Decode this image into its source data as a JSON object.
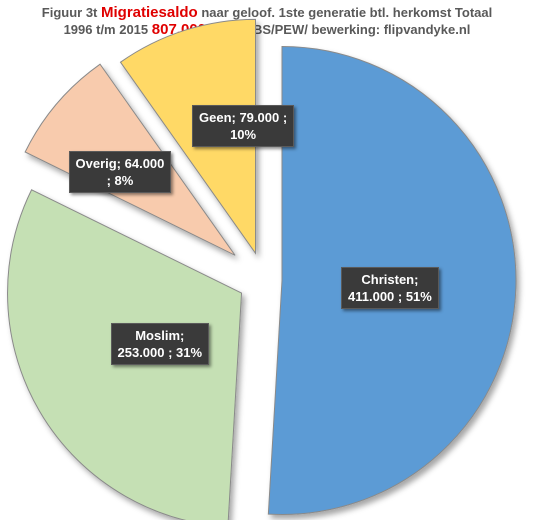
{
  "title": {
    "line1_prefix": "Figuur 3t",
    "line1_highlight": "Migratiesaldo",
    "line1_suffix": "naar geloof. 1ste generatie btl. herkomst  Totaal",
    "line2_prefix": "1996 t/m 2015",
    "line2_highlight": "807.000",
    "line2_suffix": "Bron CBS/PEW/ bewerking: flipvandyke.nl"
  },
  "chart_data": {
    "type": "pie",
    "title": "",
    "total": 807000,
    "slices": [
      {
        "name": "Christen",
        "value": 411000,
        "percent": 51,
        "label_line1": "Christen;",
        "label_line2": "411.000 ; 51%",
        "color": "#5b9bd5"
      },
      {
        "name": "Moslim",
        "value": 253000,
        "percent": 31,
        "label_line1": "Moslim;",
        "label_line2": "253.000 ; 31%",
        "color": "#c5e0b4"
      },
      {
        "name": "Overig",
        "value": 64000,
        "percent": 8,
        "label_line1": "Overig;  64.000",
        "label_line2": "; 8%",
        "color": "#f8cbad"
      },
      {
        "name": "Geen",
        "value": 79000,
        "percent": 10,
        "label_line1": "Geen;  79.000 ;",
        "label_line2": "10%",
        "color": "#ffd966"
      }
    ],
    "exploded": true,
    "legend": "none"
  }
}
